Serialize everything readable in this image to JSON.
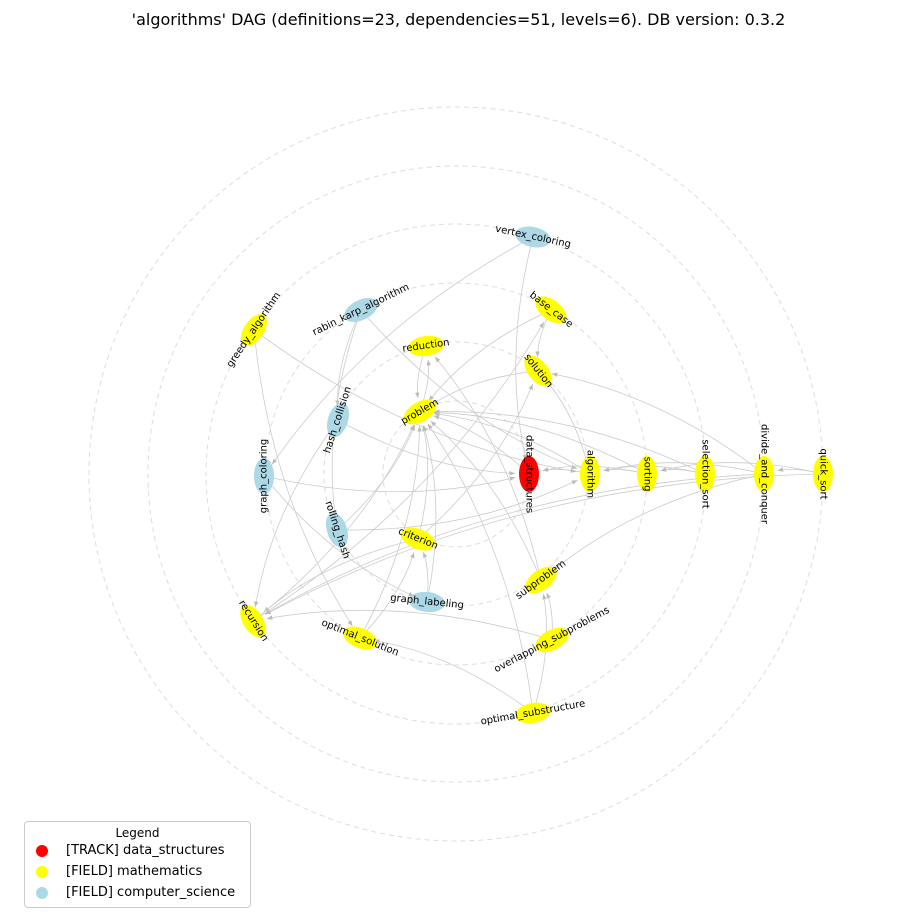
{
  "title": "'algorithms' DAG (definitions=23, dependencies=51, levels=6). DB version: 0.3.2",
  "legend": {
    "title": "Legend",
    "items": [
      {
        "label": "[TRACK] data_structures",
        "color": "#ff0000"
      },
      {
        "label": "[FIELD] mathematics",
        "color": "#ffff00"
      },
      {
        "label": "[FIELD] computer_science",
        "color": "#add8e6"
      }
    ]
  },
  "nodes": [
    {
      "id": "data_structures",
      "label": "data_structures",
      "color": "#ff0000"
    },
    {
      "id": "algorithm",
      "label": "algorithm",
      "color": "#ffff00"
    },
    {
      "id": "sorting",
      "label": "sorting",
      "color": "#ffff00"
    },
    {
      "id": "selection_sort",
      "label": "selection_sort",
      "color": "#ffff00"
    },
    {
      "id": "divide_and_conquer",
      "label": "divide_and_conquer",
      "color": "#ffff00"
    },
    {
      "id": "quick_sort",
      "label": "quick_sort",
      "color": "#ffff00"
    },
    {
      "id": "problem",
      "label": "problem",
      "color": "#ffff00"
    },
    {
      "id": "solution",
      "label": "solution",
      "color": "#ffff00"
    },
    {
      "id": "reduction",
      "label": "reduction",
      "color": "#ffff00"
    },
    {
      "id": "base_case",
      "label": "base_case",
      "color": "#ffff00"
    },
    {
      "id": "vertex_coloring",
      "label": "vertex_coloring",
      "color": "#add8e6"
    },
    {
      "id": "rabin_karp_algorithm",
      "label": "rabin_karp_algorithm",
      "color": "#add8e6"
    },
    {
      "id": "greedy_algorithm",
      "label": "greedy_algorithm",
      "color": "#ffff00"
    },
    {
      "id": "hash_collision",
      "label": "hash_collision",
      "color": "#add8e6"
    },
    {
      "id": "graph_coloring",
      "label": "graph_coloring",
      "color": "#add8e6"
    },
    {
      "id": "rolling_hash",
      "label": "rolling_hash",
      "color": "#add8e6"
    },
    {
      "id": "criterion",
      "label": "criterion",
      "color": "#ffff00"
    },
    {
      "id": "recursion",
      "label": "recursion",
      "color": "#ffff00"
    },
    {
      "id": "optimal_solution",
      "label": "optimal_solution",
      "color": "#ffff00"
    },
    {
      "id": "graph_labeling",
      "label": "graph_labeling",
      "color": "#add8e6"
    },
    {
      "id": "subproblem",
      "label": "subproblem",
      "color": "#ffff00"
    },
    {
      "id": "overlapping_subproblems",
      "label": "overlapping_subproblems",
      "color": "#ffff00"
    },
    {
      "id": "optimal_substructure",
      "label": "optimal_substructure",
      "color": "#ffff00"
    }
  ],
  "edges": [
    [
      "algorithm",
      "data_structures"
    ],
    [
      "sorting",
      "algorithm"
    ],
    [
      "selection_sort",
      "sorting"
    ],
    [
      "divide_and_conquer",
      "algorithm"
    ],
    [
      "quick_sort",
      "divide_and_conquer"
    ],
    [
      "quick_sort",
      "sorting"
    ],
    [
      "selection_sort",
      "algorithm"
    ],
    [
      "data_structures",
      "problem"
    ],
    [
      "algorithm",
      "problem"
    ],
    [
      "algorithm",
      "solution"
    ],
    [
      "solution",
      "problem"
    ],
    [
      "reduction",
      "problem"
    ],
    [
      "base_case",
      "solution"
    ],
    [
      "vertex_coloring",
      "data_structures"
    ],
    [
      "vertex_coloring",
      "graph_coloring"
    ],
    [
      "rabin_karp_algorithm",
      "algorithm"
    ],
    [
      "rabin_karp_algorithm",
      "hash_collision"
    ],
    [
      "rabin_karp_algorithm",
      "rolling_hash"
    ],
    [
      "greedy_algorithm",
      "algorithm"
    ],
    [
      "greedy_algorithm",
      "optimal_solution"
    ],
    [
      "hash_collision",
      "data_structures"
    ],
    [
      "graph_coloring",
      "data_structures"
    ],
    [
      "graph_coloring",
      "graph_labeling"
    ],
    [
      "rolling_hash",
      "algorithm"
    ],
    [
      "criterion",
      "problem"
    ],
    [
      "criterion",
      "recursion"
    ],
    [
      "criterion",
      "solution"
    ],
    [
      "recursion",
      "problem"
    ],
    [
      "recursion",
      "base_case"
    ],
    [
      "optimal_solution",
      "criterion"
    ],
    [
      "optimal_solution",
      "problem"
    ],
    [
      "graph_labeling",
      "criterion"
    ],
    [
      "graph_labeling",
      "problem"
    ],
    [
      "subproblem",
      "problem"
    ],
    [
      "subproblem",
      "reduction"
    ],
    [
      "overlapping_subproblems",
      "subproblem"
    ],
    [
      "overlapping_subproblems",
      "recursion"
    ],
    [
      "optimal_substructure",
      "subproblem"
    ],
    [
      "optimal_substructure",
      "optimal_solution"
    ],
    [
      "optimal_substructure",
      "problem"
    ],
    [
      "divide_and_conquer",
      "recursion"
    ],
    [
      "divide_and_conquer",
      "subproblem"
    ],
    [
      "divide_and_conquer",
      "solution"
    ],
    [
      "selection_sort",
      "problem"
    ],
    [
      "quick_sort",
      "recursion"
    ],
    [
      "sorting",
      "problem"
    ],
    [
      "sorting",
      "data_structures"
    ],
    [
      "base_case",
      "problem"
    ],
    [
      "problem",
      "reduction"
    ],
    [
      "hash_collision",
      "recursion"
    ],
    [
      "rolling_hash",
      "problem"
    ]
  ]
}
